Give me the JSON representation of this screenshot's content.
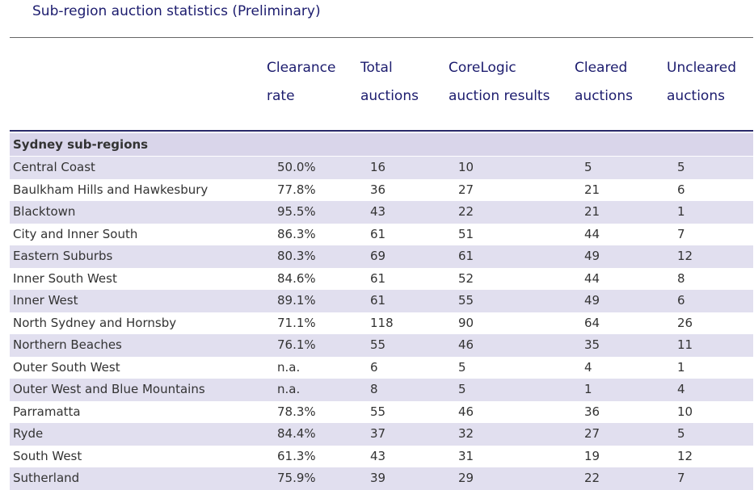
{
  "title": "Sub-region auction statistics (Preliminary)",
  "table": {
    "header": [
      [
        "Clearance",
        "rate"
      ],
      [
        "Total",
        "auctions"
      ],
      [
        "CoreLogic",
        "auction results"
      ],
      [
        "Cleared",
        "auctions"
      ],
      [
        "Uncleared",
        "auctions"
      ]
    ],
    "section": "Sydney sub-regions",
    "rows": [
      [
        "Central Coast",
        "50.0%",
        "16",
        "10",
        "5",
        "5"
      ],
      [
        "Baulkham Hills and Hawkesbury",
        "77.8%",
        "36",
        "27",
        "21",
        "6"
      ],
      [
        "Blacktown",
        "95.5%",
        "43",
        "22",
        "21",
        "1"
      ],
      [
        "City and Inner South",
        "86.3%",
        "61",
        "51",
        "44",
        "7"
      ],
      [
        "Eastern Suburbs",
        "80.3%",
        "69",
        "61",
        "49",
        "12"
      ],
      [
        "Inner South West",
        "84.6%",
        "61",
        "52",
        "44",
        "8"
      ],
      [
        "Inner West",
        "89.1%",
        "61",
        "55",
        "49",
        "6"
      ],
      [
        "North Sydney and Hornsby",
        "71.1%",
        "118",
        "90",
        "64",
        "26"
      ],
      [
        "Northern Beaches",
        "76.1%",
        "55",
        "46",
        "35",
        "11"
      ],
      [
        "Outer South West",
        "n.a.",
        "6",
        "5",
        "4",
        "1"
      ],
      [
        "Outer West and Blue Mountains",
        "n.a.",
        "8",
        "5",
        "1",
        "4"
      ],
      [
        "Parramatta",
        "78.3%",
        "55",
        "46",
        "36",
        "10"
      ],
      [
        "Ryde",
        "84.4%",
        "37",
        "32",
        "27",
        "5"
      ],
      [
        "South West",
        "61.3%",
        "43",
        "31",
        "19",
        "12"
      ],
      [
        "Sutherland",
        "75.9%",
        "39",
        "29",
        "22",
        "7"
      ]
    ]
  }
}
